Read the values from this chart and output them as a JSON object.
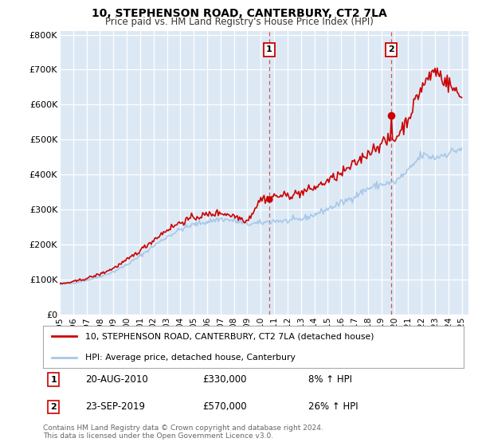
{
  "title": "10, STEPHENSON ROAD, CANTERBURY, CT2 7LA",
  "subtitle": "Price paid vs. HM Land Registry's House Price Index (HPI)",
  "plot_bg_color": "#dce9f5",
  "ylabel_ticks": [
    "£0",
    "£100K",
    "£200K",
    "£300K",
    "£400K",
    "£500K",
    "£600K",
    "£700K",
    "£800K"
  ],
  "ytick_values": [
    0,
    100000,
    200000,
    300000,
    400000,
    500000,
    600000,
    700000,
    800000
  ],
  "ylim": [
    0,
    810000
  ],
  "xlim_start": 1995.0,
  "xlim_end": 2025.5,
  "sale1_year": 2010.64,
  "sale1_price": 330000,
  "sale1_date": "20-AUG-2010",
  "sale1_hpi_pct": "8% ↑ HPI",
  "sale2_year": 2019.73,
  "sale2_price": 570000,
  "sale2_date": "23-SEP-2019",
  "sale2_hpi_pct": "26% ↑ HPI",
  "line_color_property": "#cc0000",
  "line_color_hpi": "#a8c8e8",
  "shade_color": "#dce9f5",
  "legend_property": "10, STEPHENSON ROAD, CANTERBURY, CT2 7LA (detached house)",
  "legend_hpi": "HPI: Average price, detached house, Canterbury",
  "footer1": "Contains HM Land Registry data © Crown copyright and database right 2024.",
  "footer2": "This data is licensed under the Open Government Licence v3.0.",
  "xtick_years": [
    1995,
    1996,
    1997,
    1998,
    1999,
    2000,
    2001,
    2002,
    2003,
    2004,
    2005,
    2006,
    2007,
    2008,
    2009,
    2010,
    2011,
    2012,
    2013,
    2014,
    2015,
    2016,
    2017,
    2018,
    2019,
    2020,
    2021,
    2022,
    2023,
    2024,
    2025
  ]
}
